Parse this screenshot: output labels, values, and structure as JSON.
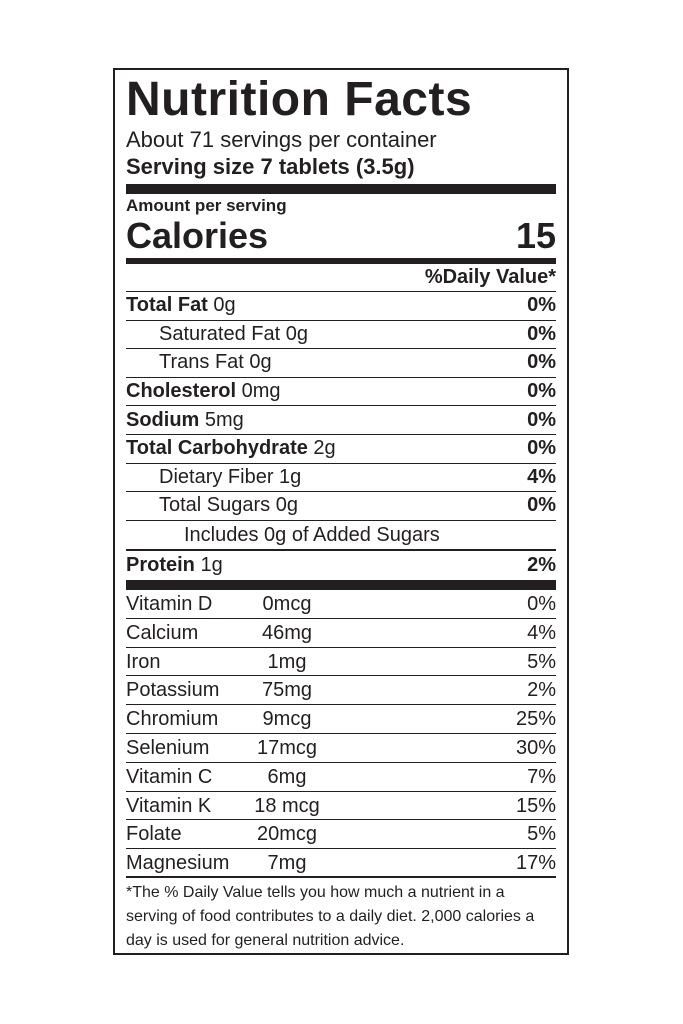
{
  "title": "Nutrition Facts",
  "servings": "About 71 servings per container",
  "serving_size": "Serving size 7 tablets (3.5g)",
  "amount_per_serving": "Amount per serving",
  "calories_label": "Calories",
  "calories_value": "15",
  "daily_value_header": "%Daily Value*",
  "nutrients": [
    {
      "bold_name": "Total Fat",
      "amount": " 0g",
      "dv": "0%"
    },
    {
      "name": "Saturated Fat 0g",
      "dv": "0%"
    },
    {
      "name": "Trans Fat 0g",
      "dv": "0%"
    },
    {
      "bold_name": "Cholesterol",
      "amount": " 0mg",
      "dv": "0%"
    },
    {
      "bold_name": "Sodium",
      "amount": " 5mg",
      "dv": "0%"
    },
    {
      "bold_name": "Total Carbohydrate",
      "amount": " 2g",
      "dv": "0%"
    },
    {
      "name": "Dietary Fiber 1g",
      "dv": "4%"
    },
    {
      "name": "Total Sugars  0g",
      "dv": "0%"
    },
    {
      "name": "Includes 0g of Added Sugars",
      "dv": ""
    },
    {
      "bold_name": "Protein",
      "amount": " 1g",
      "dv": "2%"
    }
  ],
  "vitamins": [
    {
      "name": "Vitamin D",
      "amount": "0mcg",
      "dv": "0%"
    },
    {
      "name": "Calcium",
      "amount": "46mg",
      "dv": "4%"
    },
    {
      "name": "Iron",
      "amount": "1mg",
      "dv": "5%"
    },
    {
      "name": "Potassium",
      "amount": "75mg",
      "dv": "2%"
    },
    {
      "name": "Chromium",
      "amount": "9mcg",
      "dv": "25%"
    },
    {
      "name": "Selenium",
      "amount": "17mcg",
      "dv": "30%"
    },
    {
      "name": "Vitamin C",
      "amount": "6mg",
      "dv": "7%"
    },
    {
      "name": "Vitamin K",
      "amount": "18 mcg",
      "dv": "15%"
    },
    {
      "name": "Folate",
      "amount": "20mcg",
      "dv": "5%"
    },
    {
      "name": "Magnesium",
      "amount": "7mg",
      "dv": "17%"
    }
  ],
  "footnote": "*The % Daily Value tells you how much a nutrient in a serving of food contributes to a daily diet. 2,000 calories a day is used for general nutrition advice."
}
